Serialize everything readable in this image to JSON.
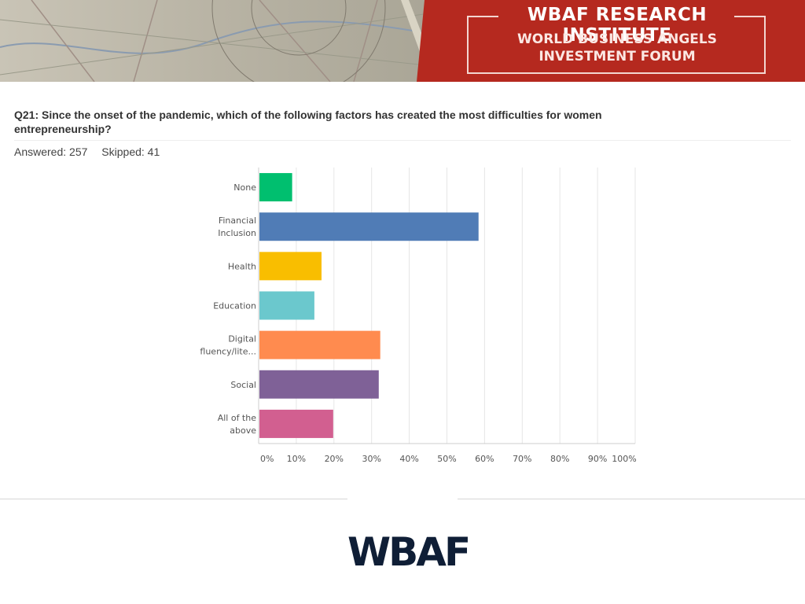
{
  "banner": {
    "title": "WBAF RESEARCH INSTITUTE",
    "subtitle_line1": "WORLD BUSINESS ANGELS",
    "subtitle_line2": "INVESTMENT FORUM",
    "bg_color": "#b5291f"
  },
  "question": {
    "text": "Q21: Since the onset of the pandemic, which of the following factors has created the most difficulties for women entrepreneurship?",
    "answered": "Answered: 257",
    "skipped": "Skipped: 41"
  },
  "chart_data": {
    "type": "bar",
    "orientation": "horizontal",
    "categories": [
      [
        "None"
      ],
      [
        "Financial",
        "Inclusion"
      ],
      [
        "Health"
      ],
      [
        "Education"
      ],
      [
        "Digital",
        "fluency/lite..."
      ],
      [
        "Social"
      ],
      [
        "All of the",
        "above"
      ]
    ],
    "values": [
      8.9,
      58.4,
      16.7,
      14.8,
      32.3,
      31.9,
      19.8
    ],
    "colors": [
      "#00bf6f",
      "#507cb6",
      "#f9be00",
      "#6bc8cd",
      "#ff8b4f",
      "#7f6197",
      "#d25f90"
    ],
    "xlim": [
      0,
      100
    ],
    "xticks": [
      "0%",
      "10%",
      "20%",
      "30%",
      "40%",
      "50%",
      "60%",
      "70%",
      "80%",
      "90%",
      "100%"
    ],
    "grid": true
  },
  "footer": {
    "logo_text": "WBAF"
  }
}
